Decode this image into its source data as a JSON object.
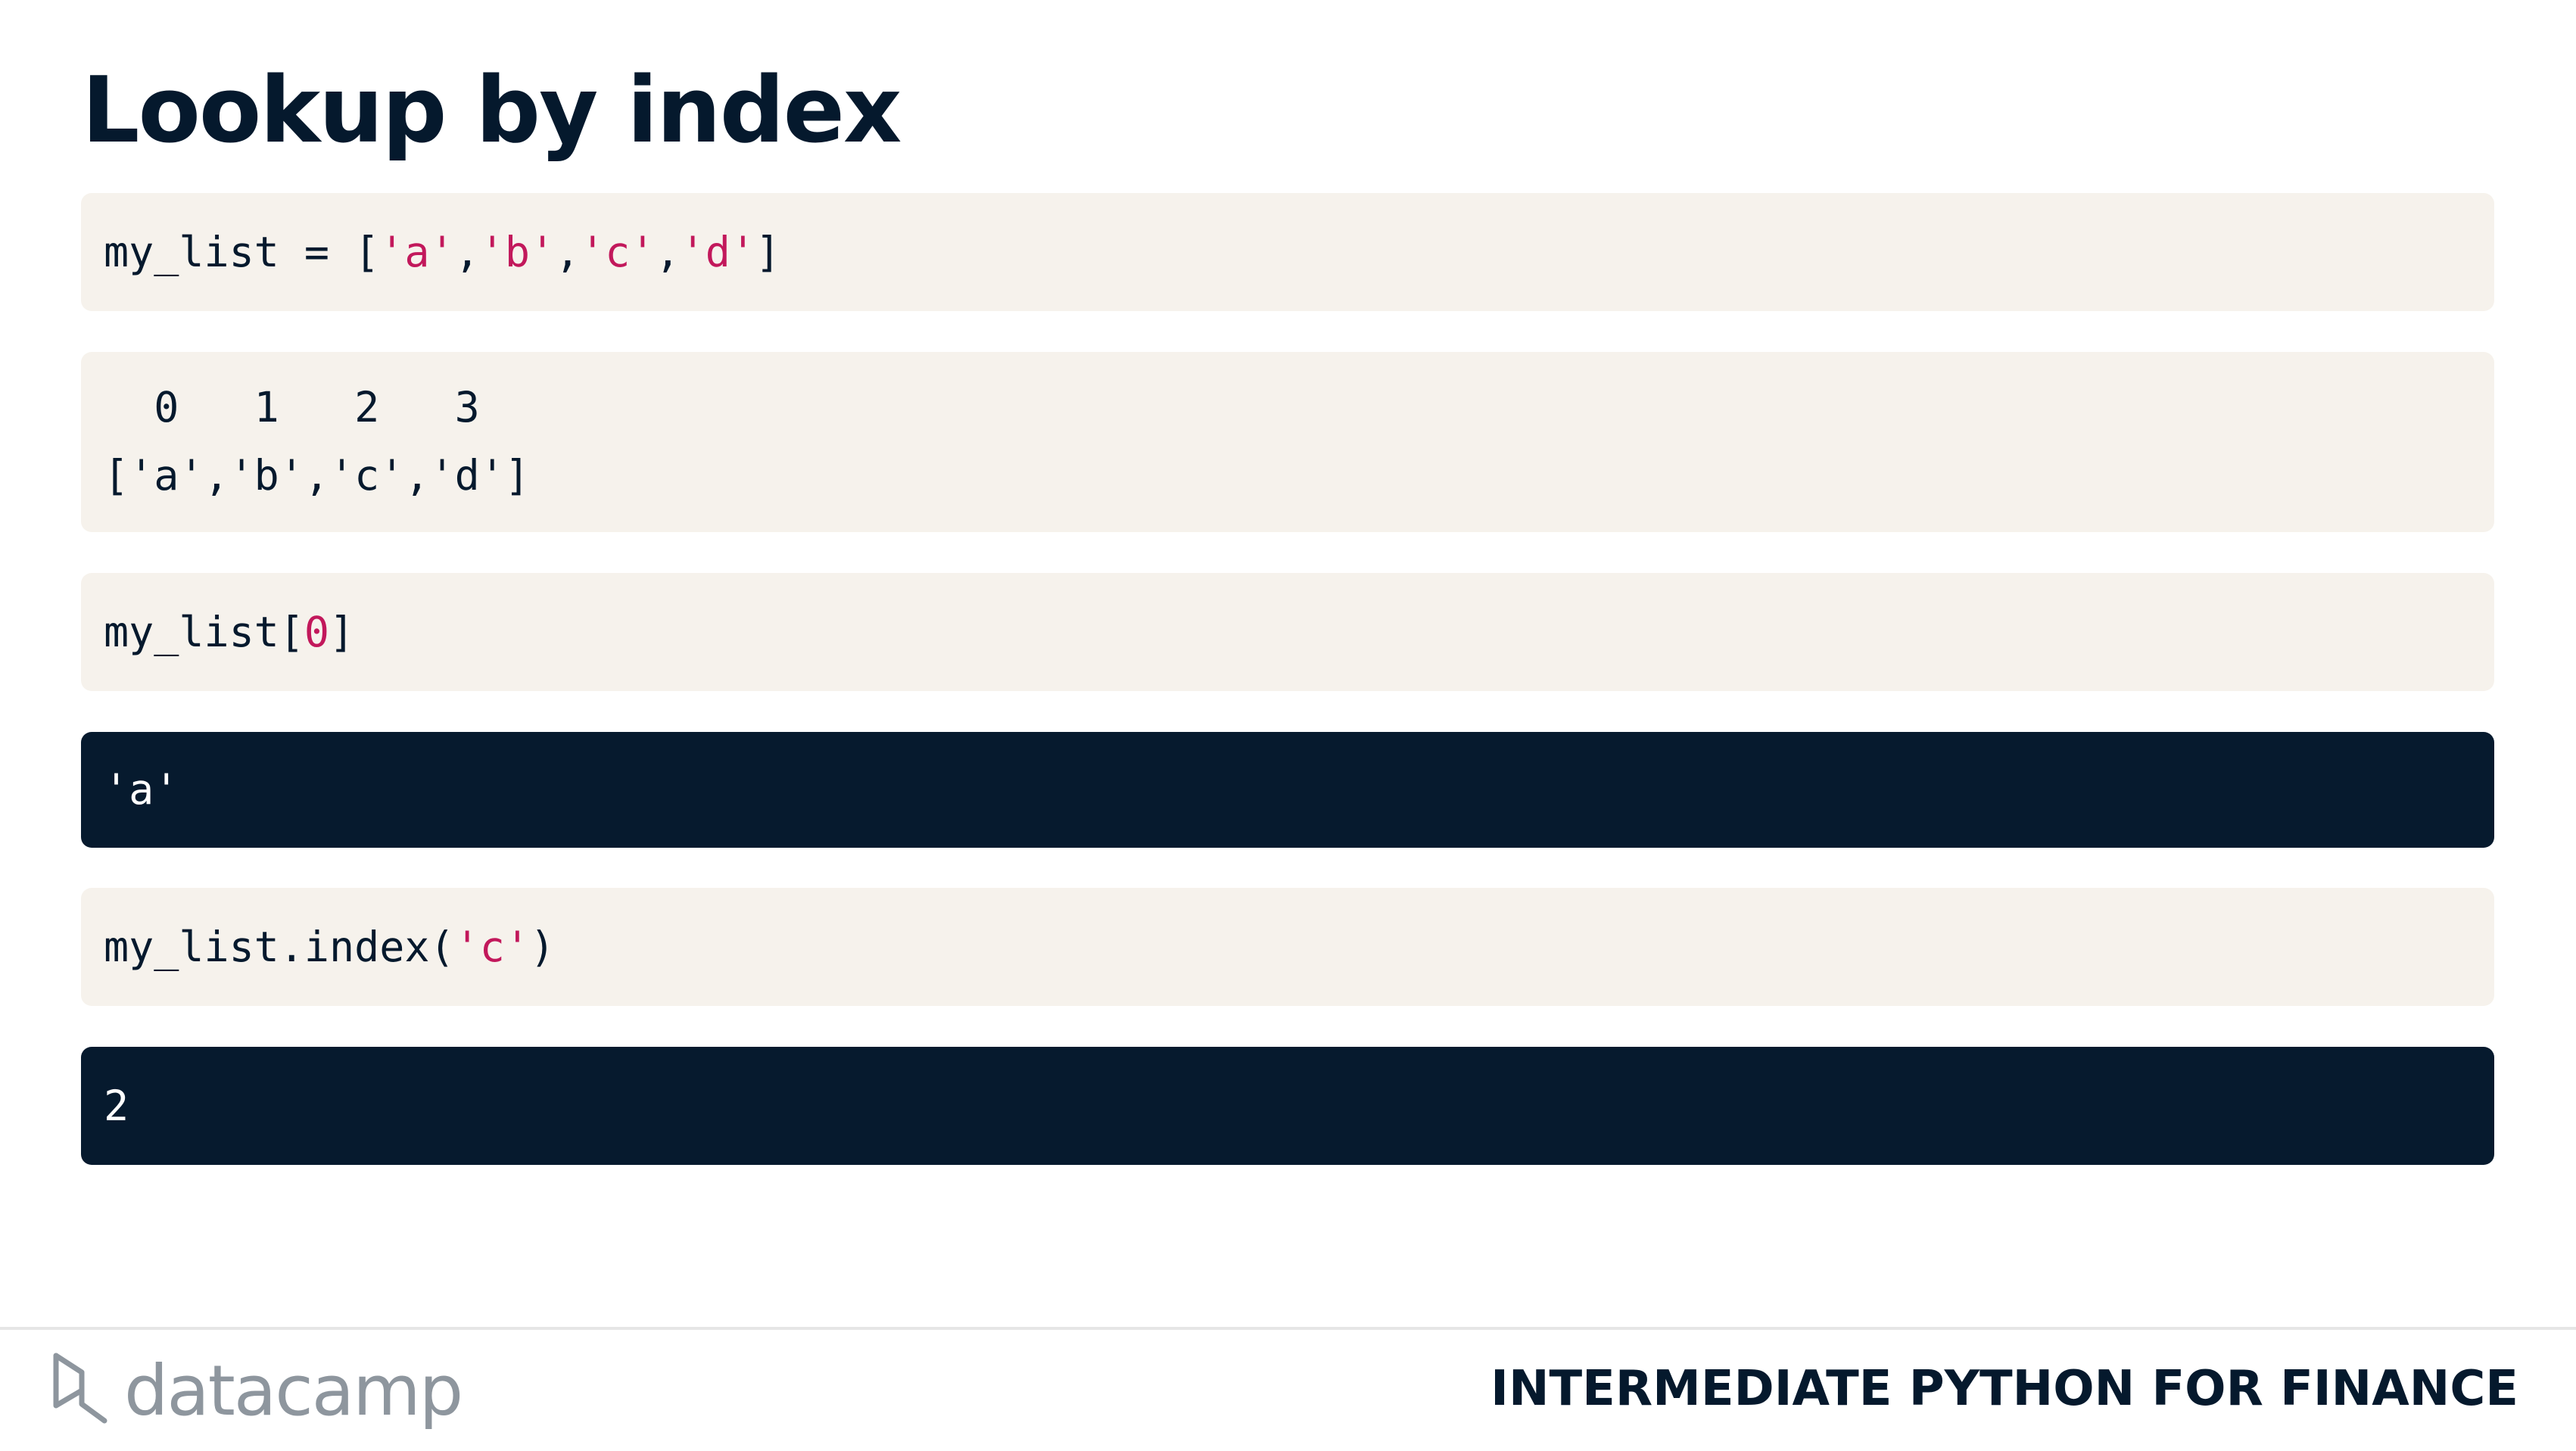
{
  "slide": {
    "title": "Lookup by index"
  },
  "blocks": [
    {
      "kind": "code",
      "segments": [
        {
          "text": "my_list = [",
          "style": "plain"
        },
        {
          "text": "'a'",
          "style": "str"
        },
        {
          "text": ",",
          "style": "plain"
        },
        {
          "text": "'b'",
          "style": "str"
        },
        {
          "text": ",",
          "style": "plain"
        },
        {
          "text": "'c'",
          "style": "str"
        },
        {
          "text": ",",
          "style": "plain"
        },
        {
          "text": "'d'",
          "style": "str"
        },
        {
          "text": "]",
          "style": "plain"
        }
      ]
    },
    {
      "kind": "code",
      "lines": [
        "  0   1   2   3",
        "['a','b','c','d']"
      ]
    },
    {
      "kind": "code",
      "segments": [
        {
          "text": "my_list[",
          "style": "plain"
        },
        {
          "text": "0",
          "style": "num"
        },
        {
          "text": "]",
          "style": "plain"
        }
      ]
    },
    {
      "kind": "output",
      "text": "'a'"
    },
    {
      "kind": "code",
      "segments": [
        {
          "text": "my_list.index(",
          "style": "plain"
        },
        {
          "text": "'c'",
          "style": "str"
        },
        {
          "text": ")",
          "style": "plain"
        }
      ]
    },
    {
      "kind": "output",
      "text": "2"
    }
  ],
  "footer": {
    "logo_text": "datacamp",
    "course_title": "INTERMEDIATE PYTHON FOR FINANCE"
  },
  "colors": {
    "code_background": "#f6f2ec",
    "output_background": "#061a2e",
    "string_highlight": "#c2185b",
    "text_dark": "#05192d",
    "logo_grey": "#8e969e"
  }
}
